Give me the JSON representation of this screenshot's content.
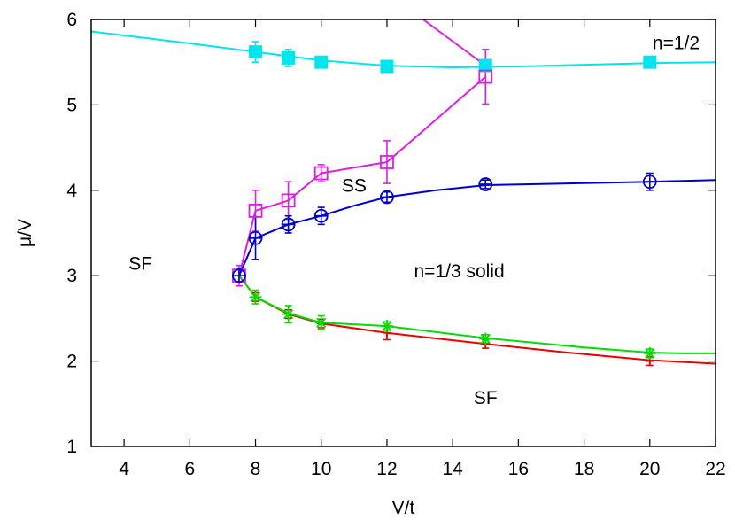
{
  "chart_data": {
    "type": "line",
    "xlabel": "V/t",
    "ylabel": "μ/V",
    "xlim": [
      3,
      22
    ],
    "ylim": [
      1,
      6
    ],
    "xticks": [
      "4",
      "6",
      "8",
      "10",
      "12",
      "14",
      "16",
      "18",
      "20",
      "22"
    ],
    "yticks": [
      "1",
      "2",
      "3",
      "4",
      "5",
      "6"
    ],
    "grid": false,
    "legend": "none",
    "annotations": [
      {
        "text": "n=1/2",
        "x": 20.8,
        "y": 5.65
      },
      {
        "text": "SS",
        "x": 11.0,
        "y": 3.98
      },
      {
        "text": "SF",
        "x": 4.5,
        "y": 3.07
      },
      {
        "text": "n=1/3 solid",
        "x": 14.2,
        "y": 2.98
      },
      {
        "text": "SF",
        "x": 15.0,
        "y": 1.5
      }
    ],
    "series": [
      {
        "color": "#00e5ee",
        "marker": "filled-square",
        "points": [
          {
            "x": 8,
            "y": 5.62,
            "err": 0.12
          },
          {
            "x": 9,
            "y": 5.55,
            "err": 0.1
          },
          {
            "x": 10,
            "y": 5.5,
            "err": 0.05
          },
          {
            "x": 12,
            "y": 5.45,
            "err": 0.04
          },
          {
            "x": 15,
            "y": 5.46,
            "err": 0.04
          },
          {
            "x": 20,
            "y": 5.5,
            "err": 0.04
          }
        ],
        "curve": [
          [
            3,
            5.86
          ],
          [
            6,
            5.72
          ],
          [
            8,
            5.62
          ],
          [
            10,
            5.52
          ],
          [
            12,
            5.46
          ],
          [
            14,
            5.44
          ],
          [
            16,
            5.45
          ],
          [
            18,
            5.47
          ],
          [
            20,
            5.49
          ],
          [
            22,
            5.5
          ]
        ]
      },
      {
        "color": "#e01ee0",
        "marker": "open-square",
        "points": [
          {
            "x": 7.5,
            "y": 3.0,
            "err": 0.12
          },
          {
            "x": 8,
            "y": 3.76,
            "err": 0.24
          },
          {
            "x": 9,
            "y": 3.88,
            "err": 0.22
          },
          {
            "x": 10,
            "y": 4.2,
            "err": 0.1
          },
          {
            "x": 12,
            "y": 4.33,
            "err": 0.25
          },
          {
            "x": 15,
            "y": 5.33,
            "err": 0.32
          }
        ],
        "curve": [
          [
            7.5,
            3.0
          ],
          [
            8,
            3.76
          ],
          [
            9,
            3.88
          ],
          [
            10,
            4.2
          ],
          [
            12,
            4.33
          ],
          [
            15,
            5.33
          ]
        ],
        "upper_curve": [
          [
            15,
            5.46
          ],
          [
            13.1,
            6.0
          ]
        ]
      },
      {
        "color": "#0000cd",
        "marker": "open-circle",
        "points": [
          {
            "x": 7.5,
            "y": 3.0,
            "err": 0.08
          },
          {
            "x": 8,
            "y": 3.44,
            "err": 0.25
          },
          {
            "x": 9,
            "y": 3.6,
            "err": 0.1
          },
          {
            "x": 10,
            "y": 3.7,
            "err": 0.1
          },
          {
            "x": 12,
            "y": 3.92,
            "err": 0.06
          },
          {
            "x": 15,
            "y": 4.07,
            "err": 0.05
          },
          {
            "x": 20,
            "y": 4.1,
            "err": 0.1
          }
        ],
        "curve": [
          [
            7.5,
            3.0
          ],
          [
            8,
            3.44
          ],
          [
            9,
            3.6
          ],
          [
            10,
            3.7
          ],
          [
            11,
            3.82
          ],
          [
            12,
            3.92
          ],
          [
            13.5,
            4.0
          ],
          [
            15,
            4.06
          ],
          [
            17.5,
            4.08
          ],
          [
            20,
            4.1
          ],
          [
            22,
            4.12
          ]
        ]
      },
      {
        "color": "#ee0000",
        "marker": "plus",
        "points": [
          {
            "x": 8,
            "y": 2.75,
            "err": 0.05
          },
          {
            "x": 9,
            "y": 2.55,
            "err": 0.05
          },
          {
            "x": 10,
            "y": 2.44,
            "err": 0.05
          },
          {
            "x": 12,
            "y": 2.33,
            "err": 0.08
          },
          {
            "x": 15,
            "y": 2.2,
            "err": 0.05
          },
          {
            "x": 20,
            "y": 2.0,
            "err": 0.05
          }
        ],
        "curve": [
          [
            7.5,
            3.0
          ],
          [
            8,
            2.75
          ],
          [
            9,
            2.55
          ],
          [
            10,
            2.44
          ],
          [
            12,
            2.33
          ],
          [
            15,
            2.2
          ],
          [
            17.5,
            2.1
          ],
          [
            20,
            2.01
          ],
          [
            22,
            1.97
          ]
        ]
      },
      {
        "color": "#00dd00",
        "marker": "star",
        "points": [
          {
            "x": 8,
            "y": 2.75,
            "err": 0.08
          },
          {
            "x": 9,
            "y": 2.55,
            "err": 0.1
          },
          {
            "x": 10,
            "y": 2.45,
            "err": 0.08
          },
          {
            "x": 12,
            "y": 2.41,
            "err": 0.05
          },
          {
            "x": 15,
            "y": 2.26,
            "err": 0.05
          },
          {
            "x": 20,
            "y": 2.09,
            "err": 0.05
          }
        ],
        "curve": [
          [
            7.5,
            3.0
          ],
          [
            8,
            2.75
          ],
          [
            9,
            2.56
          ],
          [
            10,
            2.45
          ],
          [
            12,
            2.41
          ],
          [
            15,
            2.27
          ],
          [
            18,
            2.16
          ],
          [
            20,
            2.1
          ],
          [
            21,
            2.09
          ],
          [
            22,
            2.09
          ]
        ]
      }
    ]
  }
}
